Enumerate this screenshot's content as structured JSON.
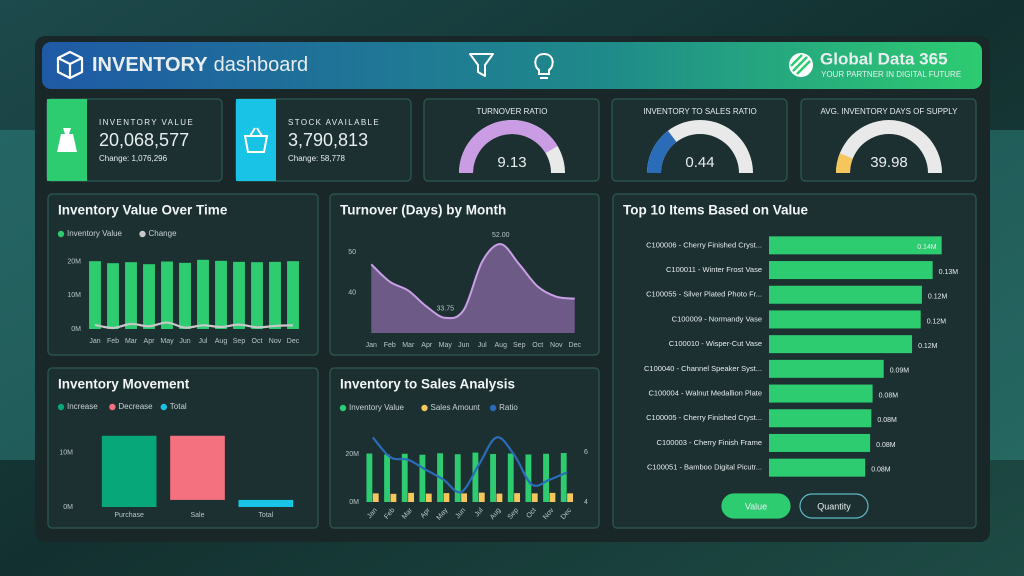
{
  "header": {
    "title": "INVENTORY",
    "subtitle": "dashboard",
    "brand": "Global Data 365",
    "tagline": "YOUR PARTNER IN DIGITAL FUTURE"
  },
  "kpis": [
    {
      "label": "INVENTORY VALUE",
      "value": "20,068,577",
      "change": "Change: 1,076,296",
      "color": "#2ecc71"
    },
    {
      "label": "STOCK AVAILABLE",
      "value": "3,790,813",
      "change": "Change: 58,778",
      "color": "#19c3e6"
    }
  ],
  "gauges": [
    {
      "title": "TURNOVER RATIO",
      "value": 9.13,
      "range": [
        0,
        11
      ],
      "color": "#c99ce3"
    },
    {
      "title": "INVENTORY TO SALES RATIO",
      "value": 0.44,
      "range": [
        0,
        1.5
      ],
      "color": "#2b6cb8"
    },
    {
      "title": "AVG. INVENTORY DAYS OF SUPPLY",
      "value": 39.98,
      "range": [
        0,
        330
      ],
      "color": "#f5c65b"
    }
  ],
  "charts": [
    {
      "type": "combo",
      "title": "Inventory Value Over Time",
      "categories": [
        "Jan",
        "Feb",
        "Mar",
        "Apr",
        "May",
        "Jun",
        "Jul",
        "Aug",
        "Sep",
        "Oct",
        "Nov",
        "Dec"
      ],
      "series": [
        {
          "name": "Inventory Value",
          "kind": "bar",
          "color": "#2ecc71",
          "values": [
            20100000,
            19500000,
            19800000,
            19200000,
            20000000,
            19600000,
            20500000,
            20200000,
            19900000,
            19800000,
            19900000,
            20100000
          ]
        },
        {
          "name": "Change",
          "kind": "line",
          "color": "#c8c8c8",
          "values": [
            1200000,
            300000,
            1500000,
            800000,
            1900000,
            400000,
            1100000,
            600000,
            1300000,
            500000,
            900000,
            1100000
          ]
        }
      ],
      "ylim": [
        0,
        24000000
      ],
      "yticks": [
        {
          "value": 0,
          "label": "0M"
        },
        {
          "value": 10000000,
          "label": "10M"
        },
        {
          "value": 20000000,
          "label": "20M"
        }
      ]
    },
    {
      "type": "area",
      "title": "Turnover (Days) by Month",
      "categories": [
        "Jan",
        "Feb",
        "Mar",
        "Apr",
        "May",
        "Jun",
        "Jul",
        "Aug",
        "Sep",
        "Oct",
        "Nov",
        "Dec"
      ],
      "values": [
        47,
        42.7,
        40.5,
        36.5,
        33.75,
        35.7,
        47.7,
        52,
        47,
        41.5,
        39,
        38.5
      ],
      "value_labels": [
        null,
        null,
        null,
        null,
        "33.75",
        null,
        null,
        "52.00",
        null,
        null,
        null,
        null
      ],
      "color": "#c9a0e6",
      "ylim": [
        30,
        55
      ],
      "yticks": [
        40,
        50
      ]
    },
    {
      "type": "hbar",
      "title": "Top 10 Items Based on Value",
      "categories": [
        "C100006 - Cherry Finished Cryst...",
        "C100011 - Winter Frost Vase",
        "C100055 - Silver Plated Photo Fr...",
        "C100009 - Normandy Vase",
        "C100010 - Wisper-Cut Vase",
        "C100040 - Channel Speaker Syst...",
        "C100004 - Walnut Medallion Plate",
        "C100005 - Cherry Finished Cryst...",
        "C100003 - Cherry Finish Frame",
        "C100051 - Bamboo Digital Picutr..."
      ],
      "values": [
        140000,
        132700,
        124000,
        123000,
        116000,
        93000,
        84000,
        83000,
        82000,
        78000
      ],
      "value_labels": [
        "0.14M",
        "0.13M",
        "0.12M",
        "0.12M",
        "0.12M",
        "0.09M",
        "0.08M",
        "0.08M",
        "0.08M",
        "0.08M"
      ],
      "color": "#2ecc71",
      "xlim": [
        0,
        150000
      ]
    },
    {
      "type": "waterfall",
      "title": "Inventory Movement",
      "categories": [
        "Purchase",
        "Sale",
        "Total"
      ],
      "values": [
        13100000,
        -11800000,
        1300000
      ],
      "legend": [
        {
          "name": "Increase",
          "color": "#08a77a"
        },
        {
          "name": "Decrease",
          "color": "#f4717f"
        },
        {
          "name": "Total",
          "color": "#19c3e6"
        }
      ],
      "ylim": [
        0,
        16000000
      ],
      "yticks": [
        {
          "value": 0,
          "label": "0M"
        },
        {
          "value": 10000000,
          "label": "10M"
        }
      ]
    },
    {
      "type": "combo",
      "title": "Inventory to Sales Analysis",
      "categories": [
        "Jan",
        "Feb",
        "Mar",
        "Apr",
        "May",
        "Jun",
        "Jul",
        "Aug",
        "Sep",
        "Oct",
        "Nov",
        "Dec"
      ],
      "series": [
        {
          "name": "Inventory Value",
          "kind": "bar",
          "color": "#2ecc71",
          "values": [
            20200000,
            19800000,
            20100000,
            19700000,
            20300000,
            19900000,
            20600000,
            20000000,
            20200000,
            19800000,
            20100000,
            20400000
          ]
        },
        {
          "name": "Sales Amount",
          "kind": "bar",
          "color": "#f5c65b",
          "values": [
            3600000,
            3400000,
            3800000,
            3500000,
            3700000,
            3600000,
            3900000,
            3500000,
            3700000,
            3600000,
            3800000,
            3600000
          ]
        },
        {
          "name": "Ratio",
          "kind": "line",
          "axis": "y2",
          "color": "#2b6cb8",
          "values": [
            6.6,
            5.8,
            5.7,
            5.3,
            4.9,
            4.4,
            5.5,
            6.6,
            5.9,
            4.7,
            4.9,
            5.2
          ]
        }
      ],
      "ylim": [
        0,
        30000000
      ],
      "yticks": [
        {
          "value": 0,
          "label": "0M"
        },
        {
          "value": 20000000,
          "label": "20M"
        }
      ],
      "y2lim": [
        4,
        6.9
      ],
      "y2ticks": [
        4,
        6
      ]
    }
  ],
  "buttons": [
    "Value",
    "Quantity"
  ]
}
